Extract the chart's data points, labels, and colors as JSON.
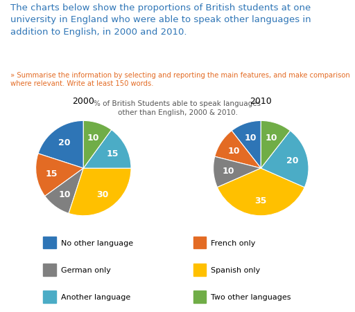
{
  "title_text": "The charts below show the proportions of British students at one\nuniversity in England who were able to speak other languages in\naddition to English, in 2000 and 2010.",
  "subtitle": "» Summarise the information by selecting and reporting the main features, and make comparison\nwhere relevant. Write at least 150 words.",
  "chart_title": "% of British Students able to speak languages\nother than English, 2000 & 2010.",
  "year_2000": "2000",
  "year_2010": "2010",
  "categories": [
    "No other language",
    "French only",
    "German only",
    "Spanish only",
    "Another language",
    "Two other languages"
  ],
  "colors": [
    "#2E75B6",
    "#E36B24",
    "#808080",
    "#FFC000",
    "#4BACC6",
    "#70AD47"
  ],
  "values_2000": [
    20,
    15,
    10,
    30,
    15,
    10
  ],
  "values_2010": [
    10,
    10,
    10,
    35,
    20,
    10
  ],
  "bg_color": "#FFFFFF",
  "title_color": "#2E75B6",
  "subtitle_color": "#E36B24",
  "chart_title_color": "#555555",
  "label_fontsize": 9,
  "legend_fontsize": 8,
  "title_fontsize": 9.5,
  "subtitle_fontsize": 7.2,
  "chart_title_fontsize": 7.5,
  "year_fontsize": 9
}
